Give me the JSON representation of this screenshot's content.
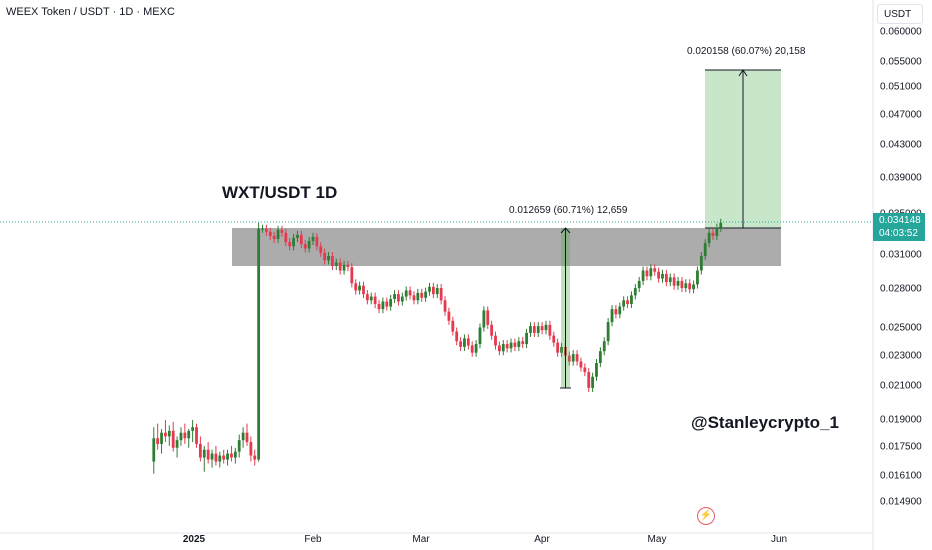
{
  "header": {
    "symbol_title": "WEEX Token / USDT · 1D · MEXC"
  },
  "currency_label": "USDT",
  "price_tag": {
    "price": "0.034148",
    "countdown": "04:03:52"
  },
  "annotations": {
    "title": "WXT/USDT 1D",
    "handle": "@Stanleycrypto_1",
    "measure_1": "0.012659 (60.71%) 12,659",
    "measure_2": "0.020158 (60.07%) 20,158"
  },
  "icons": {
    "lightning": "lightning-icon"
  },
  "colors": {
    "up": "#2e7d32",
    "down": "#e53950",
    "zone": "#9e9e9e",
    "target": "#c8e6c9",
    "pricetag": "#26a69a"
  },
  "chart_data": {
    "type": "candlestick",
    "title": "WXT/USDT 1D",
    "xlabel": "",
    "ylabel": "USDT",
    "y_axis_scale": "log",
    "y_ticks": [
      "0.060000",
      "0.055000",
      "0.051000",
      "0.047000",
      "0.043000",
      "0.039000",
      "0.035000",
      "0.031000",
      "0.028000",
      "0.025000",
      "0.023000",
      "0.021000",
      "0.019000",
      "0.017500",
      "0.016100",
      "0.014900"
    ],
    "x_ticks": [
      {
        "label": "2025",
        "date": "2025-01-01",
        "bold": true
      },
      {
        "label": "Feb",
        "date": "2025-02-01"
      },
      {
        "label": "Mar",
        "date": "2025-03-01"
      },
      {
        "label": "Apr",
        "date": "2025-04-01"
      },
      {
        "label": "May",
        "date": "2025-05-01"
      },
      {
        "label": "Jun",
        "date": "2025-06-01"
      }
    ],
    "current_price": 0.034148,
    "resistance_zone": {
      "from_date": "2025-01-11",
      "to_date": "2025-06-01",
      "low": 0.03,
      "high": 0.034
    },
    "measure_1": {
      "date": "2025-04-06",
      "from": 0.02085,
      "to": 0.03351,
      "change": 0.012659,
      "percent": 60.71,
      "ticks": 12659
    },
    "measure_2": {
      "from_date": "2025-05-13",
      "to_date": "2025-06-01",
      "from": 0.03357,
      "to": 0.05373,
      "change": 0.020158,
      "percent": 60.07,
      "ticks": 20158
    },
    "candles_ohlc_approx": [
      [
        "2024-12-22",
        0.0168,
        0.0186,
        0.0162,
        0.018
      ],
      [
        "2024-12-23",
        0.018,
        0.0188,
        0.0174,
        0.0177
      ],
      [
        "2024-12-24",
        0.0177,
        0.0185,
        0.0172,
        0.0183
      ],
      [
        "2024-12-25",
        0.0183,
        0.019,
        0.0178,
        0.0181
      ],
      [
        "2024-12-26",
        0.0181,
        0.0187,
        0.0176,
        0.0184
      ],
      [
        "2024-12-27",
        0.0184,
        0.0189,
        0.0173,
        0.0175
      ],
      [
        "2024-12-28",
        0.0175,
        0.0181,
        0.017,
        0.0179
      ],
      [
        "2024-12-29",
        0.0179,
        0.0186,
        0.0176,
        0.0183
      ],
      [
        "2024-12-30",
        0.0183,
        0.0188,
        0.0177,
        0.018
      ],
      [
        "2024-12-31",
        0.018,
        0.0185,
        0.0175,
        0.0184
      ],
      [
        "2025-01-01",
        0.0184,
        0.019,
        0.0178,
        0.0186
      ],
      [
        "2025-01-02",
        0.0186,
        0.0188,
        0.0175,
        0.0177
      ],
      [
        "2025-01-03",
        0.0177,
        0.0181,
        0.0168,
        0.017
      ],
      [
        "2025-01-04",
        0.017,
        0.0176,
        0.0163,
        0.0174
      ],
      [
        "2025-01-05",
        0.0174,
        0.0178,
        0.0167,
        0.0169
      ],
      [
        "2025-01-06",
        0.0169,
        0.0174,
        0.0165,
        0.0172
      ],
      [
        "2025-01-07",
        0.0172,
        0.0176,
        0.0166,
        0.0168
      ],
      [
        "2025-01-08",
        0.0168,
        0.0173,
        0.0165,
        0.0171
      ],
      [
        "2025-01-09",
        0.0171,
        0.0174,
        0.0167,
        0.0169
      ],
      [
        "2025-01-10",
        0.0169,
        0.0174,
        0.0166,
        0.0172
      ],
      [
        "2025-01-11",
        0.0172,
        0.0176,
        0.0168,
        0.017
      ],
      [
        "2025-01-12",
        0.017,
        0.0175,
        0.0167,
        0.0173
      ],
      [
        "2025-01-13",
        0.0173,
        0.0182,
        0.017,
        0.0179
      ],
      [
        "2025-01-14",
        0.0179,
        0.0186,
        0.0175,
        0.0183
      ],
      [
        "2025-01-15",
        0.0183,
        0.0188,
        0.0176,
        0.0178
      ],
      [
        "2025-01-16",
        0.0178,
        0.0181,
        0.0168,
        0.0171
      ],
      [
        "2025-01-17",
        0.0171,
        0.0174,
        0.0166,
        0.0169
      ],
      [
        "2025-01-18",
        0.0169,
        0.0341,
        0.0168,
        0.0335
      ]
    ]
  }
}
